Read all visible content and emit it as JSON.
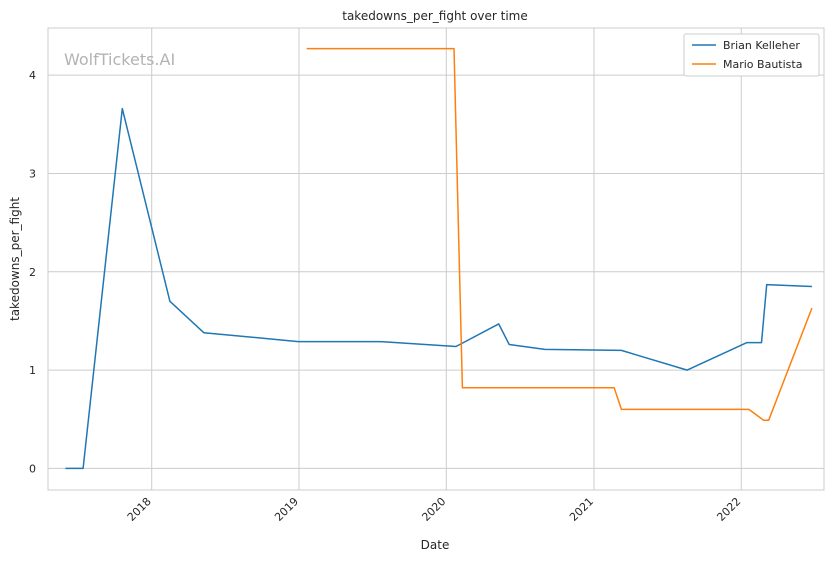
{
  "chart_data": {
    "type": "line",
    "title": "takedowns_per_fight over time",
    "xlabel": "Date",
    "ylabel": "takedowns_per_fight",
    "watermark": "WolfTickets.AI",
    "x_ticks": [
      "2018",
      "2019",
      "2020",
      "2021",
      "2022"
    ],
    "y_ticks": [
      "0",
      "1",
      "2",
      "3",
      "4"
    ],
    "xlim": [
      "2017-04-19",
      "2022-07-25"
    ],
    "ylim": [
      -0.22,
      4.48
    ],
    "grid": true,
    "legend_position": "top-right",
    "series": [
      {
        "name": "Brian Kelleher",
        "color": "#1f77b4",
        "points": [
          [
            "2017-06-01",
            0.0
          ],
          [
            "2017-07-15",
            0.0
          ],
          [
            "2017-10-20",
            3.66
          ],
          [
            "2018-02-15",
            1.7
          ],
          [
            "2018-05-10",
            1.38
          ],
          [
            "2018-12-30",
            1.29
          ],
          [
            "2019-07-20",
            1.29
          ],
          [
            "2020-01-25",
            1.24
          ],
          [
            "2020-05-10",
            1.47
          ],
          [
            "2020-06-05",
            1.26
          ],
          [
            "2020-09-01",
            1.21
          ],
          [
            "2021-03-10",
            1.2
          ],
          [
            "2021-08-20",
            1.0
          ],
          [
            "2022-01-15",
            1.28
          ],
          [
            "2022-02-20",
            1.28
          ],
          [
            "2022-03-05",
            1.87
          ],
          [
            "2022-06-25",
            1.85
          ]
        ]
      },
      {
        "name": "Mario Bautista",
        "color": "#ff7f0e",
        "points": [
          [
            "2019-01-20",
            4.27
          ],
          [
            "2020-01-20",
            4.27
          ],
          [
            "2020-02-10",
            0.82
          ],
          [
            "2021-02-20",
            0.82
          ],
          [
            "2021-03-10",
            0.6
          ],
          [
            "2022-01-20",
            0.6
          ],
          [
            "2022-02-25",
            0.49
          ],
          [
            "2022-03-10",
            0.49
          ],
          [
            "2022-06-25",
            1.63
          ]
        ]
      }
    ]
  }
}
